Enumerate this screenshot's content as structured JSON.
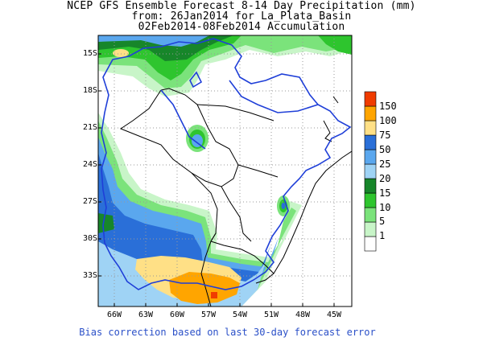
{
  "title": {
    "line1": "NCEP GFS Ensemble Forecast 8-14 Day Precipitation (mm)",
    "line2": "from: 26Jan2014   for La_Plata_Basin",
    "line3": "02Feb2014-08Feb2014 Accumulation"
  },
  "lat_labels": [
    "15S",
    "18S",
    "21S",
    "24S",
    "27S",
    "30S",
    "33S"
  ],
  "lon_labels": [
    "66W",
    "63W",
    "60W",
    "57W",
    "54W",
    "51W",
    "48W",
    "45W"
  ],
  "legend": {
    "levels": [
      "150",
      "100",
      "75",
      "50",
      "25",
      "20",
      "15",
      "10",
      "5",
      "1"
    ],
    "colors": [
      "#ffffff",
      "#c8f5c8",
      "#7be37b",
      "#2ec52e",
      "#17862a",
      "#9fd3f5",
      "#5aa7ee",
      "#2a6fd8",
      "#ffe086",
      "#ffa500",
      "#f03c00"
    ]
  },
  "palette": {
    "basin_outline": "#1f3fd8",
    "country_border": "#000000",
    "bias_text": "#2b50c8"
  },
  "footer": "Bias correction based on last 30-day forecast error"
}
